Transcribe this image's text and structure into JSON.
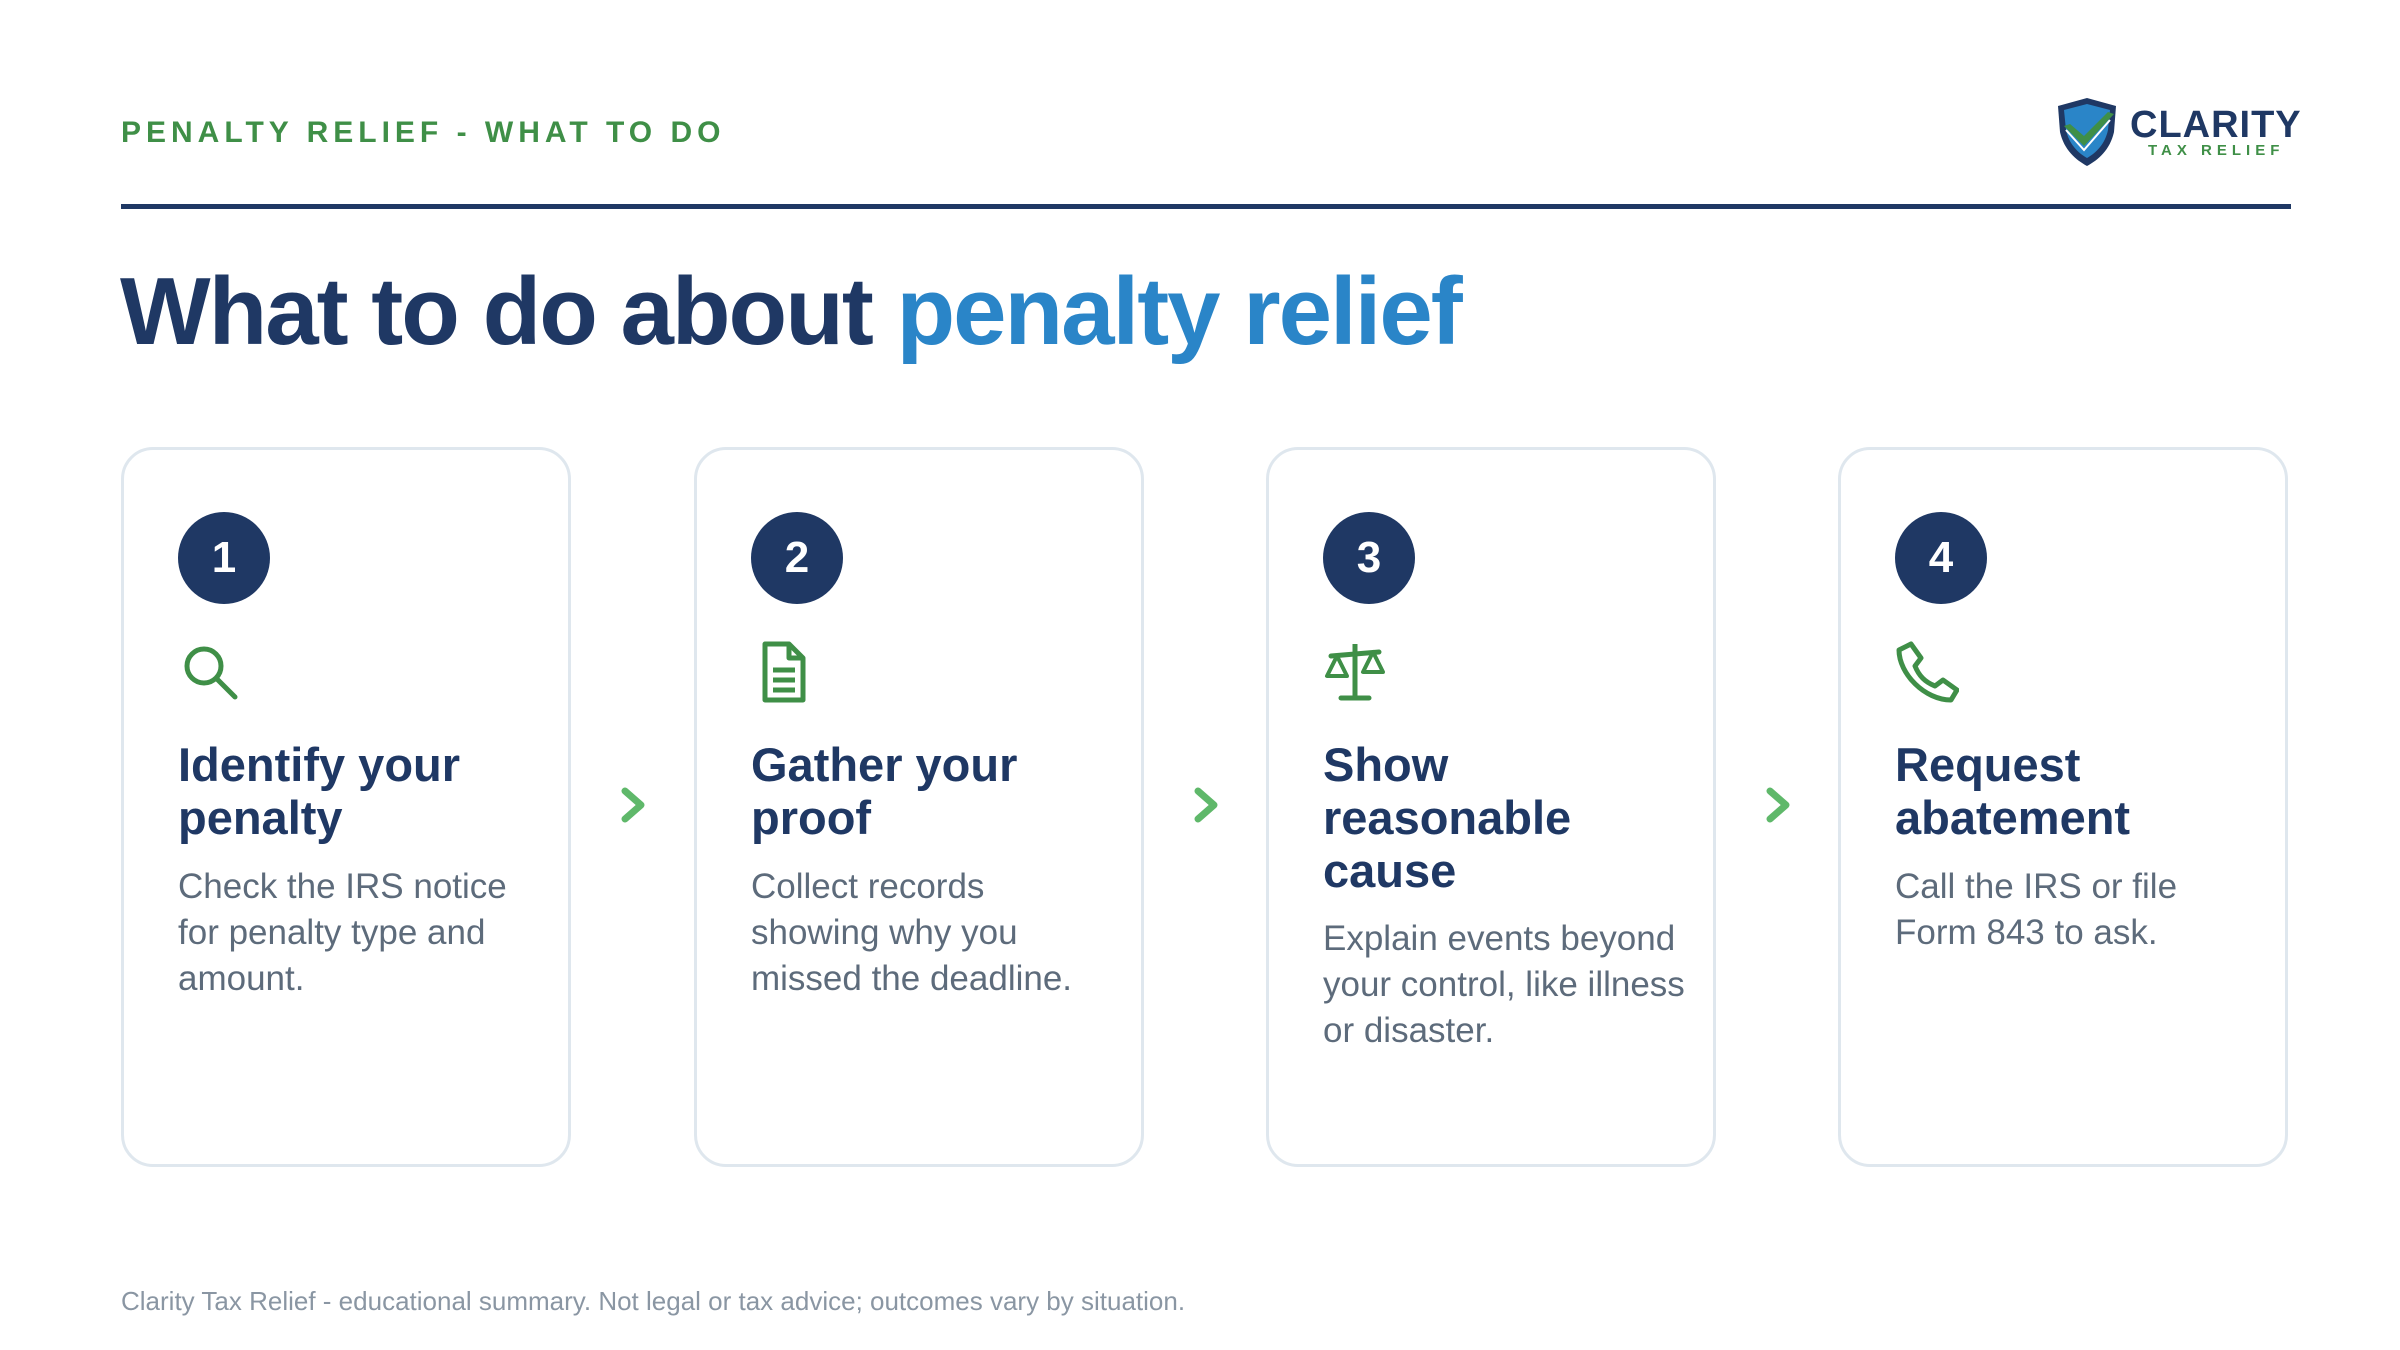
{
  "header": {
    "eyebrow": "PENALTY RELIEF - WHAT TO DO",
    "logo_name": "CLARITY",
    "logo_tagline": "TAX RELIEF"
  },
  "title": {
    "main": "What to do about ",
    "accent": "penalty relief"
  },
  "steps": [
    {
      "number": "1",
      "icon": "search-icon",
      "heading": "Identify your penalty",
      "body": "Check the IRS notice for penalty type and amount."
    },
    {
      "number": "2",
      "icon": "document-icon",
      "heading": "Gather your proof",
      "body": "Collect records showing why you missed the deadline."
    },
    {
      "number": "3",
      "icon": "scales-icon",
      "heading": "Show reasonable cause",
      "body": "Explain events beyond your control, like illness or disaster."
    },
    {
      "number": "4",
      "icon": "phone-icon",
      "heading": "Request abatement",
      "body": "Call the IRS or file Form 843 to ask."
    }
  ],
  "footer": "Clarity Tax Relief - educational summary. Not legal or tax advice; outcomes vary by situation.",
  "colors": {
    "navy": "#1f3864",
    "accent_blue": "#2a85c8",
    "green": "#3f8f47",
    "arrow_green": "#5fb86a",
    "body_text": "#5d6b7b",
    "card_border": "#dfe7ee"
  }
}
